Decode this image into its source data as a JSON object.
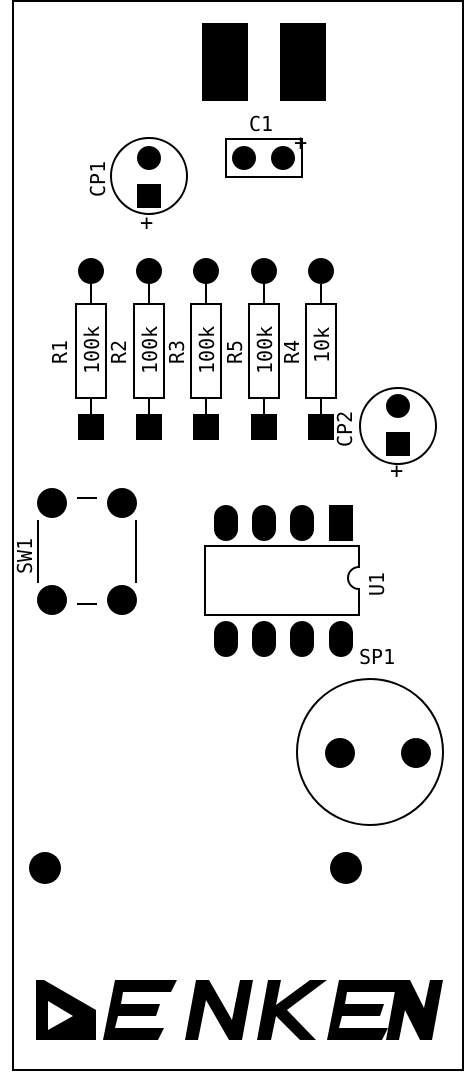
{
  "board": {
    "outline_color": "#000000",
    "background": "#ffffff"
  },
  "components": {
    "c1": {
      "ref": "C1",
      "polarity": "+"
    },
    "cp1": {
      "ref": "CP1",
      "polarity": "+"
    },
    "cp2": {
      "ref": "CP2",
      "polarity": "+"
    },
    "resistors": [
      {
        "ref": "R1",
        "value": "100k"
      },
      {
        "ref": "R2",
        "value": "100k"
      },
      {
        "ref": "R3",
        "value": "100k"
      },
      {
        "ref": "R5",
        "value": "100k"
      },
      {
        "ref": "R4",
        "value": "10k"
      }
    ],
    "sw1": {
      "ref": "SW1"
    },
    "u1": {
      "ref": "U1"
    },
    "sp1": {
      "ref": "SP1"
    }
  },
  "logo": {
    "text": "DENKEN"
  }
}
